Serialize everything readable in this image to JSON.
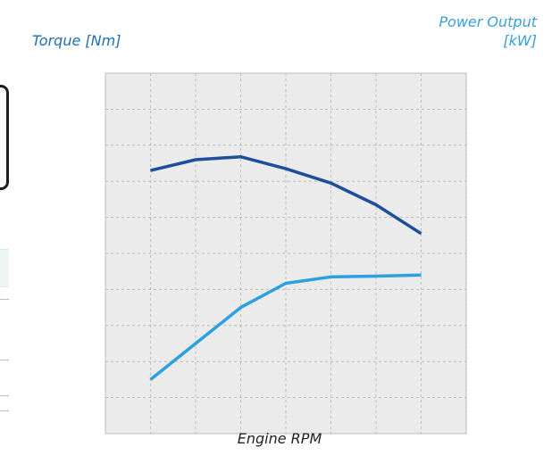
{
  "labels": {
    "left_axis": "Torque [Nm]",
    "right_axis": "Power Output [kW]",
    "x_axis": "Engine RPM"
  },
  "colors": {
    "torque": "#1f4e9c",
    "power": "#2e9fe0",
    "plot_bg": "#ebebeb",
    "grid": "#b3b3b3",
    "left_label": "#1f6fb2",
    "right_label": "#3a9fdc"
  },
  "chart_data": {
    "type": "line",
    "title": "",
    "xlabel": "Engine RPM",
    "ylabel": "Torque [Nm]",
    "y2label": "Power Output [kW]",
    "grid": true,
    "tick_labels_shown": false,
    "x": [
      1,
      2,
      3,
      4,
      5,
      6,
      7
    ],
    "xlim": [
      0,
      8
    ],
    "ylim": [
      0,
      10
    ],
    "series": [
      {
        "name": "Torque [Nm]",
        "axis": "left",
        "values": [
          7.3,
          7.6,
          7.68,
          7.35,
          6.95,
          6.35,
          5.55
        ]
      },
      {
        "name": "Power Output [kW]",
        "axis": "right",
        "values": [
          1.5,
          2.5,
          3.5,
          4.17,
          4.35,
          4.37,
          4.4
        ]
      }
    ]
  }
}
